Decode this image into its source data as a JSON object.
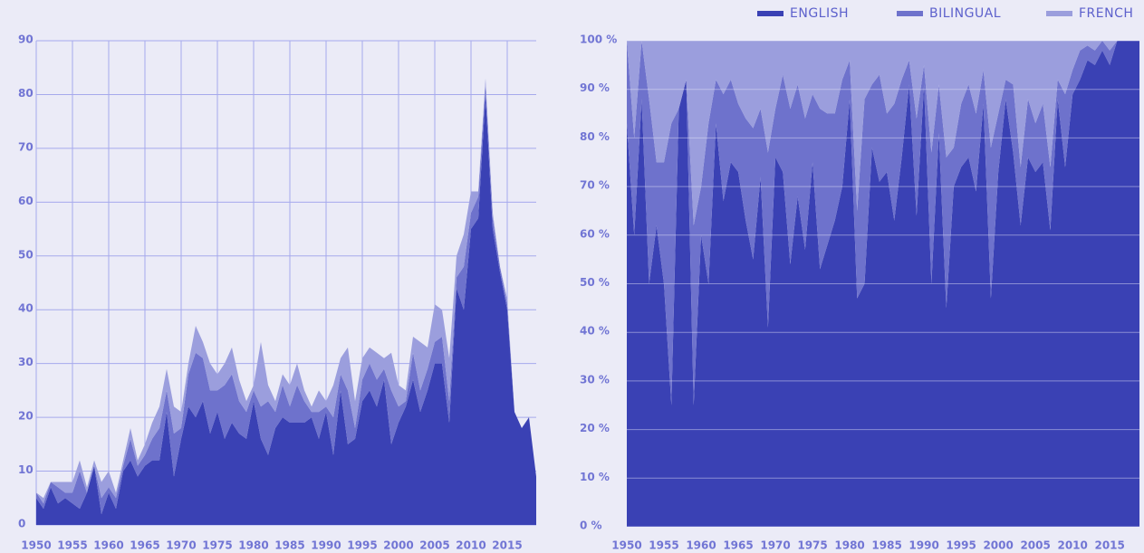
{
  "chart_data": [
    {
      "type": "stacked_area",
      "x": [
        1950,
        1951,
        1952,
        1953,
        1954,
        1955,
        1956,
        1957,
        1958,
        1959,
        1960,
        1961,
        1962,
        1963,
        1964,
        1965,
        1966,
        1967,
        1968,
        1969,
        1970,
        1971,
        1972,
        1973,
        1974,
        1975,
        1976,
        1977,
        1978,
        1979,
        1980,
        1981,
        1982,
        1983,
        1984,
        1985,
        1986,
        1987,
        1988,
        1989,
        1990,
        1991,
        1992,
        1993,
        1994,
        1995,
        1996,
        1997,
        1998,
        1999,
        2000,
        2001,
        2002,
        2003,
        2004,
        2005,
        2006,
        2007,
        2008,
        2009,
        2010,
        2011,
        2012,
        2013,
        2014,
        2015,
        2016,
        2017,
        2018,
        2019
      ],
      "xlim": [
        1950,
        2019
      ],
      "xticks": [
        1950,
        1955,
        1960,
        1965,
        1970,
        1975,
        1980,
        1985,
        1990,
        1995,
        2000,
        2005,
        2010,
        2015
      ],
      "ylim": [
        0,
        90
      ],
      "yticks": [
        0,
        10,
        20,
        30,
        40,
        50,
        60,
        70,
        80,
        90
      ],
      "grid": true,
      "series": [
        {
          "name": "ENGLISH",
          "color": "#3a41b4",
          "values": [
            5,
            3,
            7,
            4,
            5,
            4,
            3,
            6,
            11,
            2,
            6,
            3,
            10,
            12,
            9,
            11,
            12,
            12,
            21,
            9,
            16,
            22,
            20,
            23,
            17,
            21,
            16,
            19,
            17,
            16,
            23,
            16,
            13,
            18,
            20,
            19,
            19,
            19,
            20,
            16,
            21,
            13,
            25,
            15,
            16,
            23,
            25,
            22,
            27,
            15,
            19,
            22,
            27,
            21,
            25,
            30,
            30,
            19,
            44,
            40,
            55,
            57,
            80,
            55,
            47,
            40,
            21,
            18,
            20,
            9
          ]
        },
        {
          "name": "BILINGUAL",
          "color": "#6e72cc",
          "values": [
            1,
            1,
            1,
            3,
            1,
            2,
            7,
            0,
            0,
            3,
            1,
            2,
            1,
            4,
            2,
            2,
            4,
            6,
            4,
            8,
            2,
            6,
            12,
            8,
            8,
            4,
            10,
            9,
            6,
            5,
            2,
            6,
            10,
            3,
            6,
            3,
            7,
            4,
            1,
            5,
            1,
            7,
            3,
            10,
            2,
            4,
            5,
            5,
            2,
            10,
            3,
            1,
            5,
            4,
            4,
            4,
            5,
            4,
            2,
            8,
            3,
            4,
            2,
            2,
            1,
            1,
            0,
            0,
            0,
            0
          ]
        },
        {
          "name": "FRENCH",
          "color": "#9b9edd",
          "values": [
            0,
            1,
            0,
            1,
            2,
            2,
            2,
            1,
            1,
            3,
            3,
            1,
            1,
            2,
            1,
            2,
            3,
            4,
            4,
            5,
            3,
            2,
            5,
            3,
            5,
            3,
            4,
            5,
            4,
            2,
            1,
            12,
            3,
            2,
            2,
            4,
            4,
            2,
            1,
            4,
            1,
            6,
            3,
            8,
            5,
            4,
            3,
            5,
            2,
            7,
            4,
            2,
            3,
            9,
            4,
            7,
            5,
            8,
            4,
            6,
            4,
            1,
            1,
            1,
            0,
            1,
            0,
            0,
            0,
            0
          ]
        }
      ]
    },
    {
      "type": "stacked_area",
      "x": [
        1950,
        1951,
        1952,
        1953,
        1954,
        1955,
        1956,
        1957,
        1958,
        1959,
        1960,
        1961,
        1962,
        1963,
        1964,
        1965,
        1966,
        1967,
        1968,
        1969,
        1970,
        1971,
        1972,
        1973,
        1974,
        1975,
        1976,
        1977,
        1978,
        1979,
        1980,
        1981,
        1982,
        1983,
        1984,
        1985,
        1986,
        1987,
        1988,
        1989,
        1990,
        1991,
        1992,
        1993,
        1994,
        1995,
        1996,
        1997,
        1998,
        1999,
        2000,
        2001,
        2002,
        2003,
        2004,
        2005,
        2006,
        2007,
        2008,
        2009,
        2010,
        2011,
        2012,
        2013,
        2014,
        2015,
        2016,
        2017,
        2018,
        2019
      ],
      "xlim": [
        1950,
        2019
      ],
      "xticks": [
        1950,
        1955,
        1960,
        1965,
        1970,
        1975,
        1980,
        1985,
        1990,
        1995,
        2000,
        2005,
        2010,
        2015
      ],
      "ylim": [
        0,
        100
      ],
      "yticks": [
        {
          "value": 0,
          "label": "0 %"
        },
        {
          "value": 10,
          "label": "10 %"
        },
        {
          "value": 20,
          "label": "20 %"
        },
        {
          "value": 30,
          "label": "30 %"
        },
        {
          "value": 40,
          "label": "40 %"
        },
        {
          "value": 50,
          "label": "50 %"
        },
        {
          "value": 60,
          "label": "60 %"
        },
        {
          "value": 70,
          "label": "70 %"
        },
        {
          "value": 80,
          "label": "80 %"
        },
        {
          "value": 90,
          "label": "90 %"
        },
        {
          "value": 100,
          "label": "100 %"
        }
      ],
      "grid": true,
      "series": [
        {
          "color": "#3a41b4",
          "values": [
            83,
            60,
            88,
            50,
            62,
            50,
            25,
            86,
            92,
            25,
            60,
            50,
            83,
            67,
            75,
            73,
            63,
            55,
            72,
            41,
            76,
            73,
            54,
            68,
            57,
            75,
            53,
            58,
            63,
            70,
            88,
            47,
            50,
            78,
            71,
            73,
            63,
            76,
            91,
            64,
            91,
            50,
            81,
            45,
            70,
            74,
            76,
            69,
            87,
            47,
            73,
            88,
            77,
            62,
            76,
            73,
            75,
            61,
            88,
            74,
            89,
            92,
            96,
            95,
            98,
            95,
            100,
            100,
            100,
            100
          ]
        },
        {
          "color": "#6e72cc",
          "values": [
            17,
            20,
            12,
            38,
            13,
            25,
            58,
            0,
            0,
            37,
            10,
            33,
            9,
            22,
            17,
            14,
            21,
            27,
            14,
            36,
            10,
            20,
            32,
            23,
            27,
            14,
            33,
            27,
            22,
            22,
            8,
            18,
            38,
            13,
            22,
            12,
            24,
            16,
            5,
            20,
            4,
            27,
            10,
            31,
            8,
            13,
            15,
            16,
            7,
            31,
            12,
            4,
            14,
            12,
            12,
            10,
            12,
            13,
            4,
            15,
            5,
            6,
            3,
            3,
            2,
            3,
            0,
            0,
            0,
            0
          ]
        },
        {
          "color": "#9b9edd",
          "values": [
            0,
            20,
            0,
            12,
            25,
            25,
            17,
            14,
            8,
            38,
            30,
            17,
            8,
            11,
            8,
            13,
            16,
            18,
            14,
            23,
            14,
            7,
            14,
            9,
            16,
            11,
            14,
            15,
            15,
            8,
            4,
            35,
            12,
            9,
            7,
            15,
            13,
            8,
            4,
            16,
            5,
            23,
            9,
            24,
            22,
            13,
            9,
            15,
            6,
            22,
            15,
            8,
            9,
            26,
            12,
            17,
            13,
            26,
            8,
            11,
            6,
            2,
            1,
            2,
            0,
            2,
            0,
            0,
            0,
            0
          ]
        }
      ]
    }
  ]
}
